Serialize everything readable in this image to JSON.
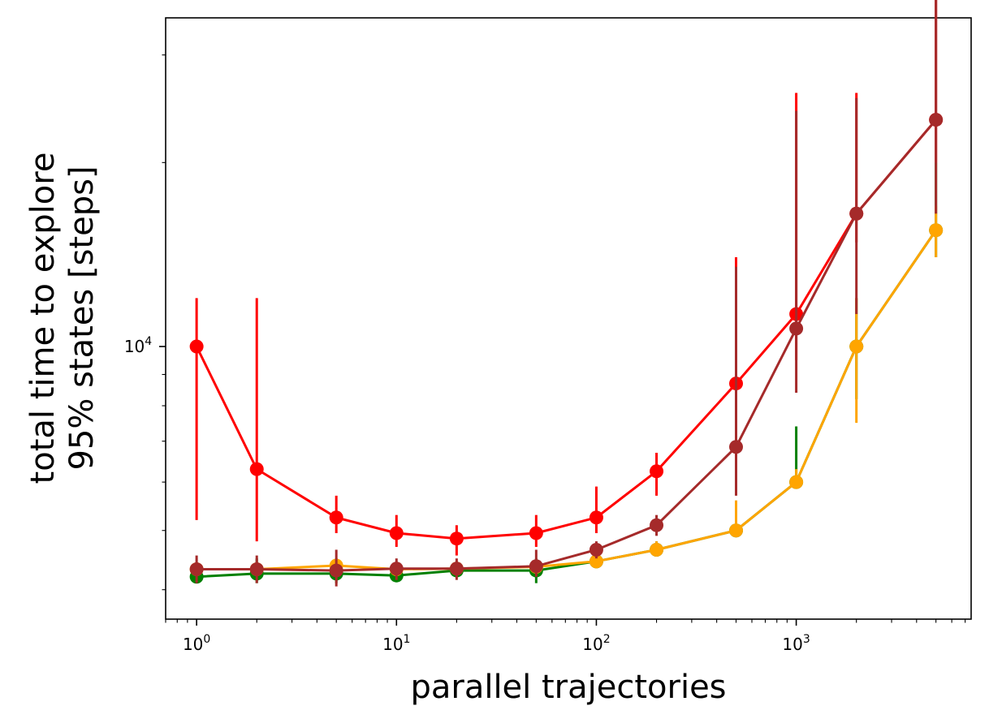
{
  "chart_data": {
    "type": "line",
    "xlabel": "parallel trajectories",
    "ylabel_lines": [
      "total time to explore",
      "95% states [steps]"
    ],
    "x_scale": "log",
    "y_scale": "log",
    "xlim": [
      0.7,
      7500
    ],
    "ylim": [
      3580,
      34500
    ],
    "x_ticks": [
      {
        "value": 1,
        "base": "10",
        "exp": "0"
      },
      {
        "value": 10,
        "base": "10",
        "exp": "1"
      },
      {
        "value": 100,
        "base": "10",
        "exp": "2"
      },
      {
        "value": 1000,
        "base": "10",
        "exp": "3"
      }
    ],
    "y_ticks": [
      {
        "value": 10000,
        "base": "10",
        "exp": "4"
      }
    ],
    "grid": false,
    "legend": "none",
    "series": [
      {
        "color": "#008000",
        "x": [
          1,
          2,
          5,
          10,
          20,
          50,
          100,
          200,
          500,
          1000,
          2000,
          5000
        ],
        "y": [
          4200,
          4250,
          4250,
          4220,
          4300,
          4300,
          4450,
          4650,
          5000,
          6000,
          10000,
          15500
        ],
        "err_low": [
          4150,
          4100,
          4100,
          4150,
          4200,
          4100,
          4350,
          4550,
          4900,
          5900,
          8200,
          14000
        ],
        "err_high": [
          4350,
          4500,
          4500,
          4350,
          4450,
          4500,
          4600,
          4800,
          5300,
          7400,
          12000,
          20000
        ]
      },
      {
        "color": "#ffa500",
        "x": [
          1,
          2,
          5,
          10,
          20,
          50,
          100,
          200,
          500,
          1000,
          2000,
          5000
        ],
        "y": [
          4320,
          4320,
          4380,
          4320,
          4330,
          4360,
          4450,
          4650,
          5000,
          6000,
          10000,
          15500
        ],
        "err_low": [
          4250,
          4250,
          4300,
          4250,
          4250,
          4300,
          4350,
          4550,
          4900,
          5900,
          7500,
          14000
        ],
        "err_high": [
          4400,
          4400,
          4450,
          4400,
          4400,
          4450,
          4600,
          4800,
          5600,
          6300,
          12000,
          17000
        ]
      },
      {
        "color": "#ff0000",
        "x": [
          1,
          2,
          5,
          10,
          20,
          50,
          100,
          200,
          500,
          1000,
          2000,
          5000
        ],
        "y": [
          10000,
          6300,
          5250,
          4950,
          4850,
          4950,
          5250,
          6250,
          8700,
          11300,
          16500,
          23500
        ],
        "err_low": [
          5200,
          4800,
          4950,
          4700,
          4550,
          4700,
          4950,
          5700,
          7500,
          9500,
          14800,
          20000
        ],
        "err_high": [
          12000,
          12000,
          5700,
          5300,
          5100,
          5300,
          5900,
          6700,
          14000,
          26000,
          26000,
          45000
        ]
      },
      {
        "color": "#a52a2a",
        "x": [
          1,
          2,
          5,
          10,
          20,
          50,
          100,
          200,
          500,
          1000,
          2000,
          5000
        ],
        "y": [
          4320,
          4320,
          4300,
          4330,
          4330,
          4370,
          4650,
          5100,
          6850,
          10700,
          16500,
          23500
        ],
        "err_low": [
          4100,
          4100,
          4050,
          4150,
          4150,
          4200,
          4500,
          4900,
          5700,
          8400,
          11300,
          16500
        ],
        "err_high": [
          4550,
          4550,
          4650,
          4500,
          4500,
          4650,
          4800,
          5300,
          13500,
          24300,
          25500,
          42000
        ]
      }
    ]
  }
}
